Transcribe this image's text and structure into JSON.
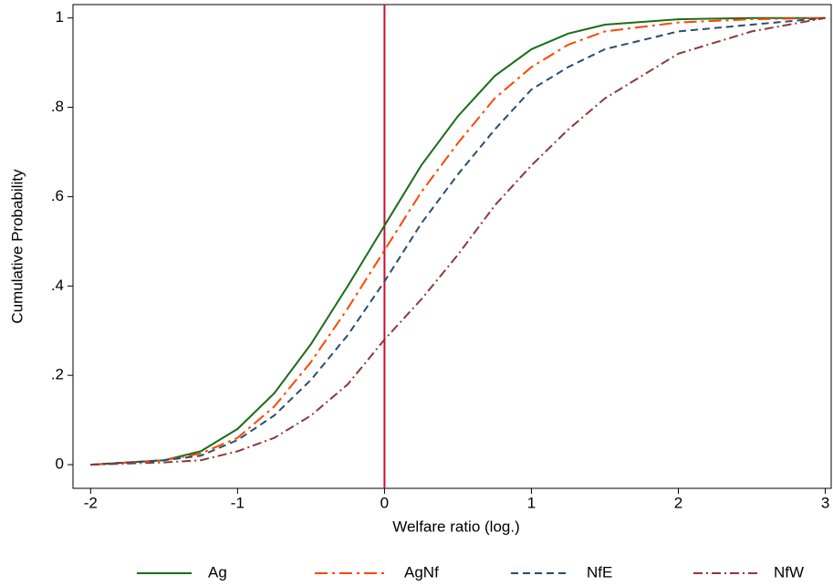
{
  "chart_data": {
    "type": "line",
    "x_label": "Welfare ratio (log.)",
    "y_label": "Cumulative Probability",
    "x": [
      -2,
      -1.5,
      -1.25,
      -1,
      -0.75,
      -0.5,
      -0.25,
      0,
      0.25,
      0.5,
      0.75,
      1,
      1.25,
      1.5,
      2,
      2.5,
      3
    ],
    "series": [
      {
        "name": "Ag",
        "color": "#1a6e1a",
        "dash": "none",
        "values": [
          0,
          0.01,
          0.03,
          0.08,
          0.16,
          0.27,
          0.4,
          0.535,
          0.67,
          0.78,
          0.87,
          0.93,
          0.965,
          0.985,
          0.997,
          1,
          1
        ]
      },
      {
        "name": "AgNf",
        "color": "#ff4500",
        "dash": "14 5 3 5",
        "values": [
          0,
          0.01,
          0.025,
          0.06,
          0.13,
          0.23,
          0.35,
          0.48,
          0.61,
          0.72,
          0.82,
          0.89,
          0.94,
          0.97,
          0.99,
          0.997,
          1
        ]
      },
      {
        "name": "NfE",
        "color": "#2b4d6e",
        "dash": "8 5",
        "values": [
          0,
          0.01,
          0.02,
          0.055,
          0.11,
          0.19,
          0.29,
          0.41,
          0.54,
          0.65,
          0.75,
          0.84,
          0.89,
          0.93,
          0.97,
          0.985,
          1
        ]
      },
      {
        "name": "NfW",
        "color": "#8b3a3a",
        "dash": "10 4 2 4",
        "values": [
          0,
          0.005,
          0.01,
          0.03,
          0.06,
          0.11,
          0.18,
          0.28,
          0.37,
          0.47,
          0.58,
          0.67,
          0.75,
          0.82,
          0.92,
          0.97,
          1
        ]
      }
    ],
    "vline": {
      "value": 0,
      "color": "#c8102e"
    },
    "xlim": [
      -2.12,
      3.04
    ],
    "ylim": [
      -0.053,
      1.03
    ],
    "xticks": [
      -2,
      -1,
      0,
      1,
      2,
      3
    ],
    "yticks": [
      0,
      {
        "value": 0.2,
        "label": ".2"
      },
      {
        "value": 0.4,
        "label": ".4"
      },
      {
        "value": 0.6,
        "label": ".6"
      },
      {
        "value": 0.8,
        "label": ".8"
      },
      1
    ],
    "legend": "bottom"
  }
}
